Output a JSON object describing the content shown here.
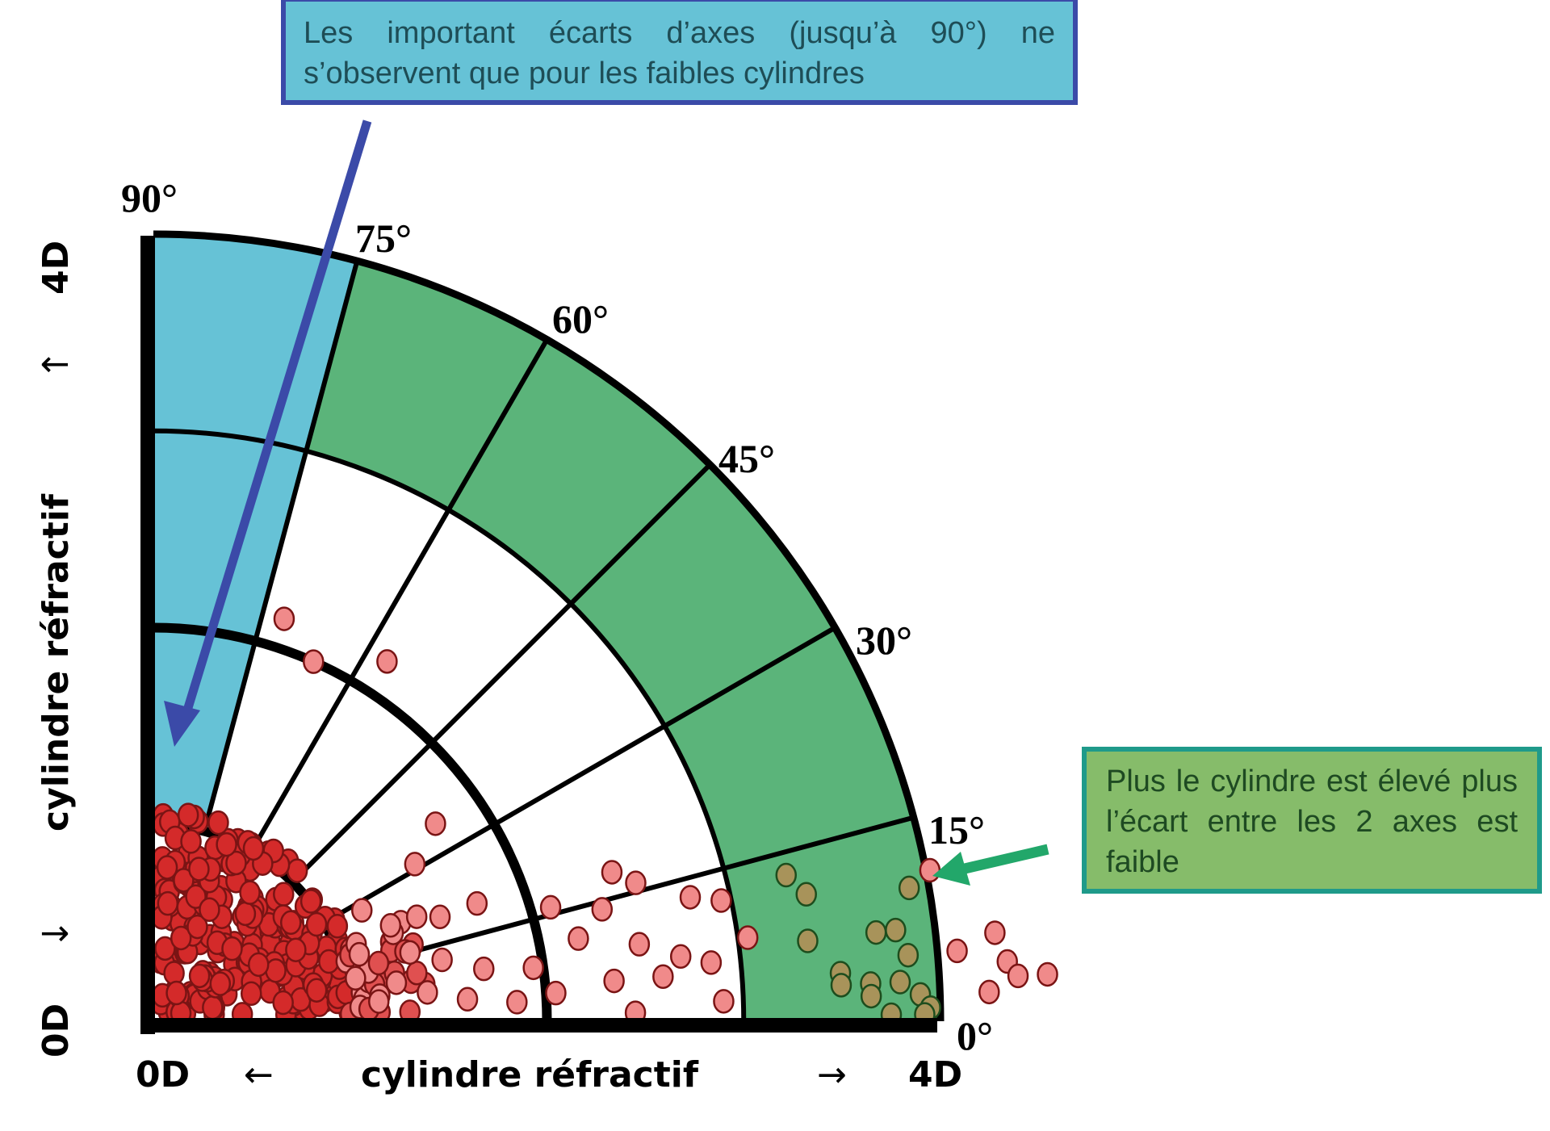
{
  "chart_data": {
    "type": "scatter",
    "subtype": "polar-quadrant",
    "title": "",
    "radial_axis": {
      "label": "cylindre réfractif",
      "min_label": "0D",
      "max_label": "4D",
      "range": [
        0,
        4
      ],
      "rings": [
        1,
        2,
        3,
        4
      ],
      "unit": "D"
    },
    "angular_axis": {
      "ticks": [
        "0°",
        "15°",
        "30°",
        "45°",
        "60°",
        "75°",
        "90°"
      ],
      "tick_values": [
        0,
        15,
        30,
        45,
        60,
        75,
        90
      ]
    },
    "zones": [
      {
        "name": "blue zone",
        "angle_range": [
          75,
          90
        ],
        "radius_range": [
          1,
          4
        ],
        "color": "#66c2d6"
      },
      {
        "name": "green zone",
        "angle_range": [
          0,
          75
        ],
        "radius_range": [
          3,
          4
        ],
        "color": "#5bb47a"
      }
    ],
    "series": [
      {
        "name": "low cylinder (dense, 0–1D)",
        "color": "#d42a2a",
        "description": "dense cluster of ~250 points filling the 0–1D sector at all angles 0–90°"
      },
      {
        "name": "medium cylinder (1–3D)",
        "color": "#f08a8a",
        "points_rd_deg": [
          [
            2.15,
            72
          ],
          [
            2.0,
            66
          ],
          [
            2.18,
            57
          ],
          [
            1.75,
            35
          ],
          [
            1.55,
            31
          ],
          [
            1.2,
            28
          ],
          [
            1.3,
            22
          ],
          [
            1.55,
            20
          ],
          [
            1.75,
            20
          ],
          [
            1.35,
            15
          ],
          [
            1.5,
            12
          ],
          [
            1.7,
            9
          ],
          [
            1.95,
            8
          ],
          [
            2.2,
            11
          ],
          [
            2.1,
            16
          ],
          [
            2.35,
            14
          ],
          [
            2.45,
            18
          ],
          [
            2.55,
            16
          ],
          [
            2.8,
            13
          ],
          [
            2.95,
            12
          ],
          [
            3.05,
            8
          ],
          [
            2.85,
            6
          ],
          [
            2.6,
            5
          ],
          [
            2.35,
            5
          ],
          [
            2.05,
            4
          ],
          [
            1.85,
            3
          ],
          [
            1.6,
            4
          ],
          [
            1.4,
            6
          ],
          [
            1.25,
            9
          ],
          [
            1.15,
            5
          ],
          [
            1.05,
            12
          ],
          [
            1.1,
            18
          ],
          [
            2.5,
            9
          ],
          [
            2.7,
            7
          ],
          [
            2.9,
            2
          ],
          [
            2.45,
            1
          ]
        ]
      },
      {
        "name": "high cylinder (3–4D)",
        "color": "#a8935a",
        "points_rd_deg": [
          [
            3.3,
            13
          ],
          [
            3.38,
            11
          ],
          [
            3.35,
            7
          ],
          [
            3.5,
            4
          ],
          [
            3.5,
            3
          ],
          [
            3.65,
            3
          ],
          [
            3.7,
            7
          ],
          [
            3.9,
            10
          ],
          [
            3.8,
            7
          ],
          [
            3.85,
            5
          ],
          [
            3.8,
            3
          ],
          [
            3.65,
            2
          ],
          [
            3.9,
            2
          ],
          [
            3.95,
            1
          ],
          [
            3.92,
            0.5
          ],
          [
            3.75,
            0.5
          ]
        ]
      },
      {
        "name": "beyond 4D",
        "color": "#f08a8a",
        "points_rd_deg": [
          [
            4.02,
            11
          ],
          [
            4.1,
            5
          ],
          [
            4.3,
            6
          ],
          [
            4.35,
            4
          ],
          [
            4.4,
            3
          ],
          [
            4.25,
            2
          ],
          [
            4.55,
            3
          ]
        ]
      }
    ],
    "annotations": [
      "Les important écarts d'axes (jusqu'à 90°) ne s'observent que pour les faibles cylindres",
      "Plus le cylindre est élevé plus l'écart entre les 2 axes est faible"
    ],
    "grid": true,
    "legend": "none"
  },
  "labels": {
    "deg_90": "90°",
    "deg_75": "75°",
    "deg_60": "60°",
    "deg_45": "45°",
    "deg_30": "30°",
    "deg_15": "15°",
    "deg_0": "0°",
    "x_axis_min": "0D",
    "x_axis_max": "4D",
    "x_axis_title": "cylindre réfractif",
    "x_arrow_left": "←",
    "x_arrow_right": "→",
    "y_axis_min": "0D",
    "y_axis_max": "4D",
    "y_axis_title": "cylindre réfractif",
    "y_arrow_down": "↓",
    "y_arrow_up": "↑"
  },
  "callouts": {
    "blue_text": "Les important écarts d’axes (jusqu’à 90°) ne s’observent que pour les faibles cylindres",
    "green_text": "Plus le cylindre est élevé plus l’écart entre les 2 axes est faible"
  },
  "colors": {
    "blue_zone": "#66c2d6",
    "green_zone": "#5bb47a",
    "blue_arrow": "#3b4aa8",
    "green_arrow": "#22a76a",
    "dense_points": "#d42a2a",
    "light_points": "#f08a8a",
    "olive_points": "#a8935a"
  }
}
